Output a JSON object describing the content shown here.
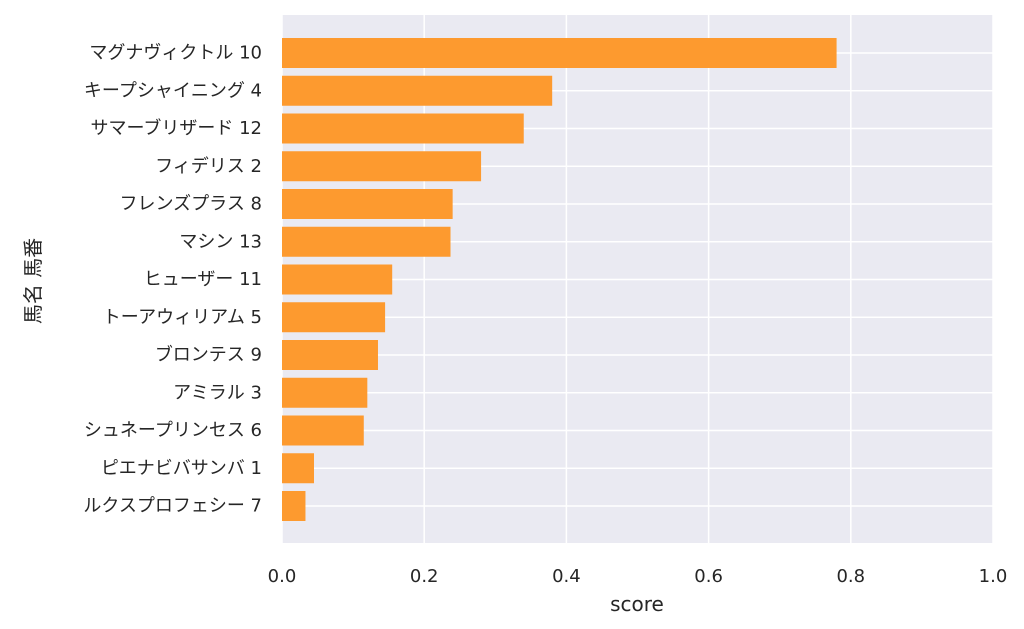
{
  "chart_data": {
    "type": "bar",
    "orientation": "horizontal",
    "categories": [
      "マグナヴィクトル 10",
      "キープシャイニング 4",
      "サマーブリザード 12",
      "フィデリス 2",
      "フレンズプラス 8",
      "マシン 13",
      "ヒューザー 11",
      "トーアウィリアム 5",
      "ブロンテス 9",
      "アミラル 3",
      "シュネープリンセス 6",
      "ピエナビバサンバ 1",
      "ルクスプロフェシー 7"
    ],
    "values": [
      0.78,
      0.38,
      0.34,
      0.28,
      0.24,
      0.237,
      0.155,
      0.145,
      0.135,
      0.12,
      0.115,
      0.045,
      0.033
    ],
    "xlabel": "score",
    "ylabel": "馬名 馬番",
    "xlim": [
      0,
      1.0
    ],
    "xticks": [
      "0.0",
      "0.2",
      "0.4",
      "0.6",
      "0.8",
      "1.0"
    ],
    "grid": true,
    "colors": {
      "bar": "#fd9a2f",
      "plot_background": "#eaeaf2",
      "grid": "#ffffff"
    }
  }
}
